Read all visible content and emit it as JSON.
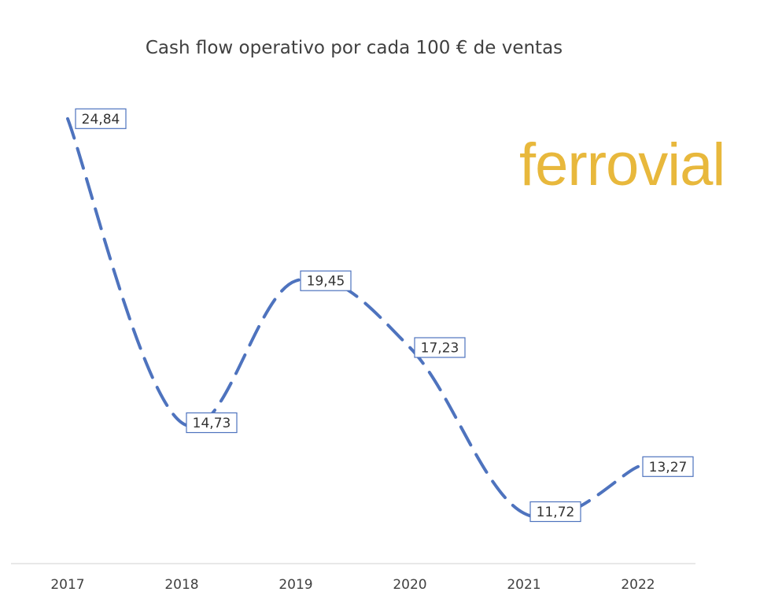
{
  "chart_data": {
    "type": "line",
    "title": "Cash flow operativo por cada 100 € de ventas",
    "categories": [
      "2017",
      "2018",
      "2019",
      "2020",
      "2021",
      "2022"
    ],
    "series": [
      {
        "values": [
          24.84,
          14.73,
          19.45,
          17.23,
          11.72,
          13.27
        ],
        "labels": [
          "24,84",
          "14,73",
          "19,45",
          "17,23",
          "11,72",
          "13,27"
        ]
      }
    ],
    "line_style": "dashed",
    "smooth": true,
    "xlabel": "",
    "ylabel": "",
    "y_axis_visible": false,
    "grid": false,
    "colors": {
      "series": "#4E73BE",
      "logo": "#E8B83C",
      "title": "#404040"
    }
  },
  "logo": {
    "text": "ferrovial"
  }
}
